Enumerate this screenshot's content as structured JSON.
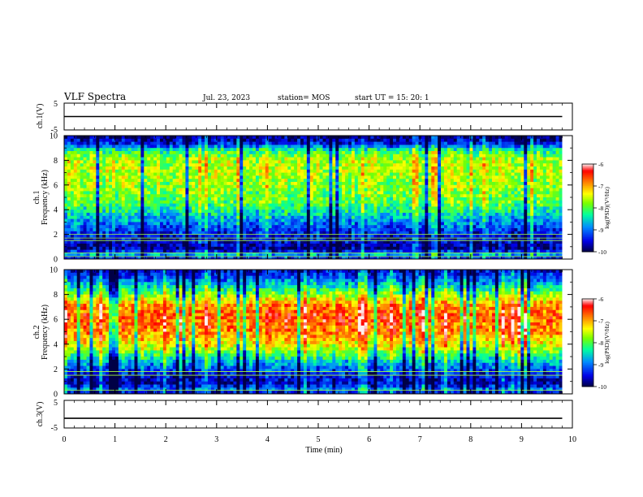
{
  "header": {
    "title": "VLF Spectra",
    "date": "Jul. 23, 2023",
    "station": "station= MOS",
    "start_ut": "start UT =  15: 20: 1"
  },
  "colors": {
    "spectrogram_scale": [
      "#000044",
      "#0000ff",
      "#00a0ff",
      "#00ff80",
      "#c0ff00",
      "#ffff00",
      "#ff8000",
      "#ff0000",
      "#ffffff"
    ],
    "axis": "#000000",
    "trace": "#000000"
  },
  "chart_data": [
    {
      "type": "line",
      "panel": "ch1-waveform",
      "ylabel": "ch.1(V)",
      "ylim": [
        -5,
        5
      ],
      "yticks": [
        "5",
        "-5"
      ],
      "series": [
        {
          "x": [
            0,
            9.8
          ],
          "y": [
            0,
            0
          ]
        }
      ]
    },
    {
      "type": "heatmap",
      "panel": "ch1-spectrogram",
      "ylabel": "ch.1\nFrequency (kHz)",
      "ylabel_lines": [
        "ch.1",
        "Frequency (kHz)"
      ],
      "ylim": [
        0,
        10
      ],
      "xlim": [
        0,
        9.8
      ],
      "yticks": [
        "0",
        "2",
        "4",
        "6",
        "8",
        "10"
      ],
      "colorbar": {
        "label": "log(PSD)(V²/Hz)",
        "range": [
          -10,
          -6
        ],
        "ticks": [
          "-6",
          "-7",
          "-8",
          "-9",
          "-10"
        ]
      },
      "profile": [
        {
          "f": 0,
          "v": -9.8
        },
        {
          "f": 0.3,
          "v": -8.6
        },
        {
          "f": 0.8,
          "v": -9.8
        },
        {
          "f": 1.5,
          "v": -9.6
        },
        {
          "f": 2.5,
          "v": -9.2
        },
        {
          "f": 3.5,
          "v": -8.6
        },
        {
          "f": 4.5,
          "v": -8.0
        },
        {
          "f": 5.5,
          "v": -7.8
        },
        {
          "f": 7.0,
          "v": -7.6
        },
        {
          "f": 8.0,
          "v": -7.6
        },
        {
          "f": 8.8,
          "v": -8.2
        },
        {
          "f": 9.3,
          "v": -9.4
        },
        {
          "f": 10,
          "v": -9.9
        }
      ],
      "lines_khz": [
        0.2,
        0.5,
        1.5,
        1.7,
        2.0
      ]
    },
    {
      "type": "heatmap",
      "panel": "ch2-spectrogram",
      "ylabel": "ch.2\nFrequency (kHz)",
      "ylabel_lines": [
        "ch.2",
        "Frequency (kHz)"
      ],
      "ylim": [
        0,
        10
      ],
      "xlim": [
        0,
        9.8
      ],
      "yticks": [
        "0",
        "2",
        "4",
        "6",
        "8",
        "10"
      ],
      "colorbar": {
        "label": "log(PSD)(V²/Hz)",
        "range": [
          -10,
          -6
        ],
        "ticks": [
          "-6",
          "-7",
          "-8",
          "-9",
          "-10"
        ]
      },
      "profile": [
        {
          "f": 0,
          "v": -9.8
        },
        {
          "f": 0.3,
          "v": -8.8
        },
        {
          "f": 0.8,
          "v": -9.6
        },
        {
          "f": 1.6,
          "v": -9.4
        },
        {
          "f": 2.4,
          "v": -8.8
        },
        {
          "f": 3.2,
          "v": -8.0
        },
        {
          "f": 4.0,
          "v": -7.3
        },
        {
          "f": 5.0,
          "v": -6.8
        },
        {
          "f": 6.2,
          "v": -6.6
        },
        {
          "f": 7.2,
          "v": -6.9
        },
        {
          "f": 8.0,
          "v": -7.8
        },
        {
          "f": 9.0,
          "v": -8.8
        },
        {
          "f": 10,
          "v": -9.6
        }
      ],
      "lines_khz": [
        0.3,
        1.5,
        1.8
      ]
    },
    {
      "type": "line",
      "panel": "ch3-waveform",
      "ylabel": "ch.3(V)",
      "ylim": [
        -5,
        5
      ],
      "yticks": [
        "5",
        "-5"
      ],
      "xlabel": "Time (min)",
      "xlim": [
        0,
        10
      ],
      "xticks": [
        "0",
        "1",
        "2",
        "3",
        "4",
        "5",
        "6",
        "7",
        "8",
        "9",
        "10"
      ],
      "series": [
        {
          "x": [
            0,
            9.8
          ],
          "y": [
            -1.5,
            -1.5
          ]
        }
      ]
    }
  ]
}
